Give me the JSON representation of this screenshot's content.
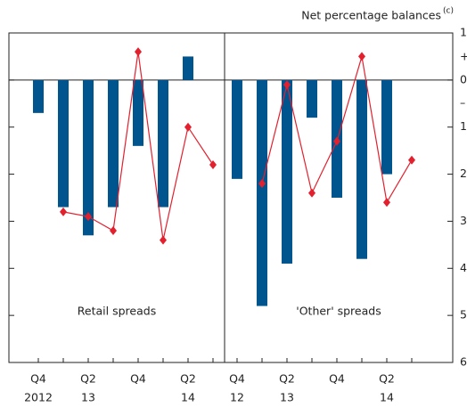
{
  "chart_data": [
    {
      "type": "bar",
      "label": "Retail spreads",
      "categories": [
        "Q4",
        null,
        "Q2",
        null,
        "Q4",
        null,
        "Q2",
        null
      ],
      "years": [
        "2012",
        null,
        "13",
        null,
        null,
        null,
        "14",
        null
      ],
      "series": [
        {
          "type": "bar",
          "color": "#00558f",
          "values": [
            -7,
            -27,
            -33,
            -27,
            -14,
            -27,
            5,
            null
          ]
        },
        {
          "type": "line",
          "color": "#e2202e",
          "values": [
            null,
            -28,
            -29,
            -32,
            6,
            -34,
            -10,
            -18
          ]
        }
      ]
    },
    {
      "type": "bar",
      "label": "'Other' spreads",
      "categories": [
        "Q4",
        null,
        "Q2",
        null,
        "Q4",
        null,
        "Q2",
        null
      ],
      "years": [
        "12",
        null,
        "13",
        null,
        null,
        null,
        "14",
        null
      ],
      "series": [
        {
          "type": "bar",
          "color": "#00558f",
          "values": [
            -21,
            -48,
            -39,
            -8,
            -25,
            -38,
            -20,
            null
          ]
        },
        {
          "type": "line",
          "color": "#e2202e",
          "values": [
            null,
            -22,
            -1,
            -24,
            -13,
            5,
            -26,
            -17
          ]
        }
      ],
      "y_label": "Net percentage balances",
      "y_label_note": "(c)",
      "signs": [
        "+",
        "–"
      ],
      "ylim": [
        -60,
        10
      ],
      "yticks": [
        10,
        0,
        {
          "value": -10,
          "label": "10"
        },
        {
          "value": -20,
          "label": "20"
        },
        {
          "value": -30,
          "label": "30"
        },
        {
          "value": -40,
          "label": "40"
        },
        {
          "value": -50,
          "label": "50"
        },
        {
          "value": -60,
          "label": "60"
        }
      ]
    }
  ]
}
